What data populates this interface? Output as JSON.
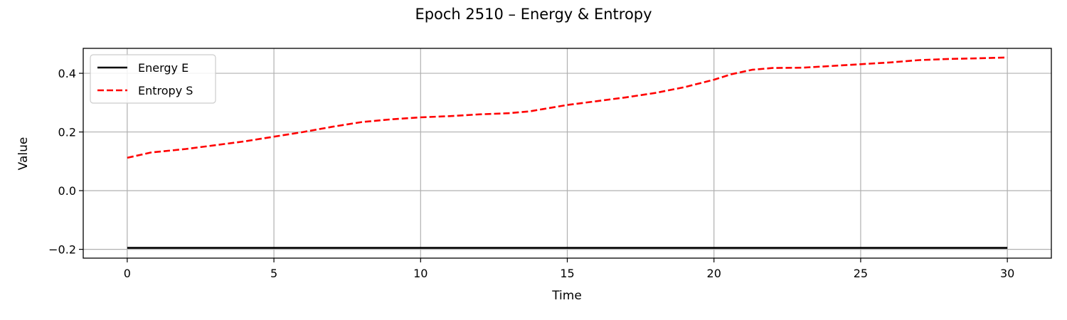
{
  "chart_data": {
    "type": "line",
    "title": "Epoch 2510 – Energy & Entropy",
    "xlabel": "Time",
    "ylabel": "Value",
    "xlim": [
      -1.5,
      31.5
    ],
    "ylim": [
      -0.23,
      0.485
    ],
    "xticks": [
      0,
      5,
      10,
      15,
      20,
      25,
      30
    ],
    "yticks": [
      -0.2,
      0.0,
      0.2,
      0.4
    ],
    "ytick_labels": [
      "−0.2",
      "0.0",
      "0.2",
      "0.4"
    ],
    "grid": true,
    "legend_position": "upper-left",
    "series": [
      {
        "name": "Energy E",
        "color": "#000000",
        "style": "solid",
        "x": [
          0,
          30
        ],
        "y": [
          -0.195,
          -0.195
        ]
      },
      {
        "name": "Entropy S",
        "color": "#ff0000",
        "style": "dashed",
        "x": [
          0,
          0.8,
          2,
          3,
          4,
          5,
          6,
          7,
          8,
          9,
          10,
          11,
          12,
          13,
          13.7,
          15,
          16,
          17,
          18,
          19,
          20,
          20.6,
          21.3,
          22,
          23,
          24,
          25,
          26,
          27,
          28,
          29,
          30
        ],
        "y": [
          0.112,
          0.13,
          0.142,
          0.155,
          0.168,
          0.184,
          0.2,
          0.218,
          0.234,
          0.243,
          0.25,
          0.254,
          0.26,
          0.264,
          0.27,
          0.292,
          0.305,
          0.318,
          0.333,
          0.353,
          0.378,
          0.397,
          0.412,
          0.418,
          0.419,
          0.425,
          0.431,
          0.437,
          0.445,
          0.449,
          0.451,
          0.454
        ]
      }
    ]
  }
}
